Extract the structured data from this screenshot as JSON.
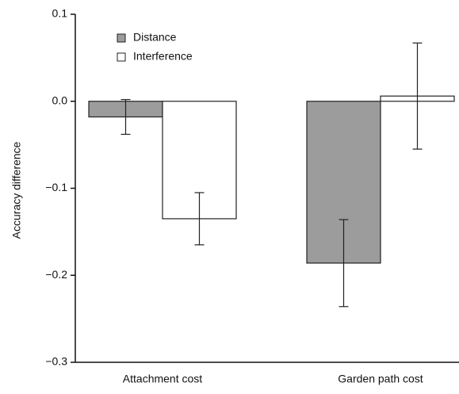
{
  "chart_data": {
    "type": "bar",
    "y_label": "Accuracy difference",
    "categories": [
      "Attachment cost",
      "Garden path cost"
    ],
    "series": [
      {
        "name": "Distance",
        "color": "#9c9c9c",
        "values": [
          -0.018,
          -0.186
        ],
        "errors": [
          0.02,
          0.05
        ]
      },
      {
        "name": "Interference",
        "color": "#ffffff",
        "values": [
          -0.135,
          0.006
        ],
        "errors": [
          0.03,
          0.061
        ]
      }
    ],
    "ylim": [
      -0.3,
      0.1
    ],
    "yticks": [
      {
        "value": -0.3,
        "label": "−0.3"
      },
      {
        "value": -0.2,
        "label": "−0.2"
      },
      {
        "value": -0.1,
        "label": "−0.1"
      },
      {
        "value": 0,
        "label": "0.0"
      },
      0.1
    ],
    "legend": "upper left"
  }
}
